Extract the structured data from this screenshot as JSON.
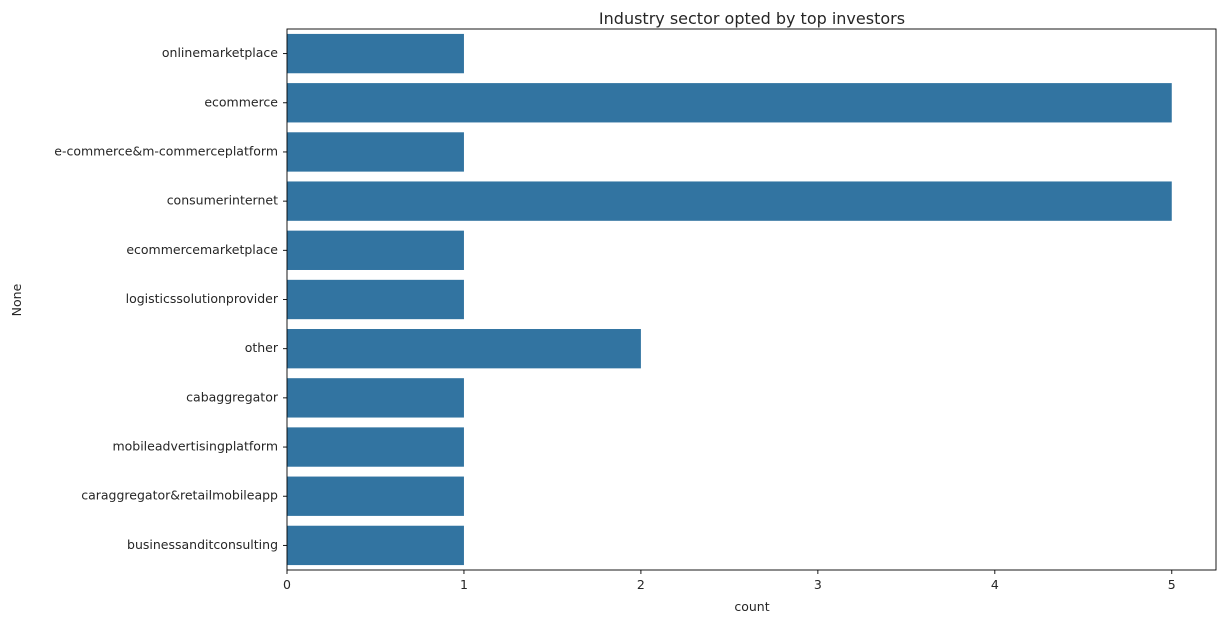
{
  "chart_data": {
    "type": "bar",
    "orientation": "horizontal",
    "title": "Industry sector opted by top investors",
    "xlabel": "count",
    "ylabel": "None",
    "categories": [
      "onlinemarketplace",
      "ecommerce",
      "e-commerce&m-commerceplatform",
      "consumerinternet",
      "ecommercemarketplace",
      "logisticssolutionprovider",
      "other",
      "cabaggregator",
      "mobileadvertisingplatform",
      "caraggregator&retailmobileapp",
      "businessanditconsulting"
    ],
    "values": [
      1,
      5,
      1,
      5,
      1,
      1,
      2,
      1,
      1,
      1,
      1
    ],
    "xlim": [
      0,
      5.25
    ],
    "xticks": [
      0,
      1,
      2,
      3,
      4,
      5
    ],
    "grid": false,
    "bar_color": "#3274a1"
  }
}
